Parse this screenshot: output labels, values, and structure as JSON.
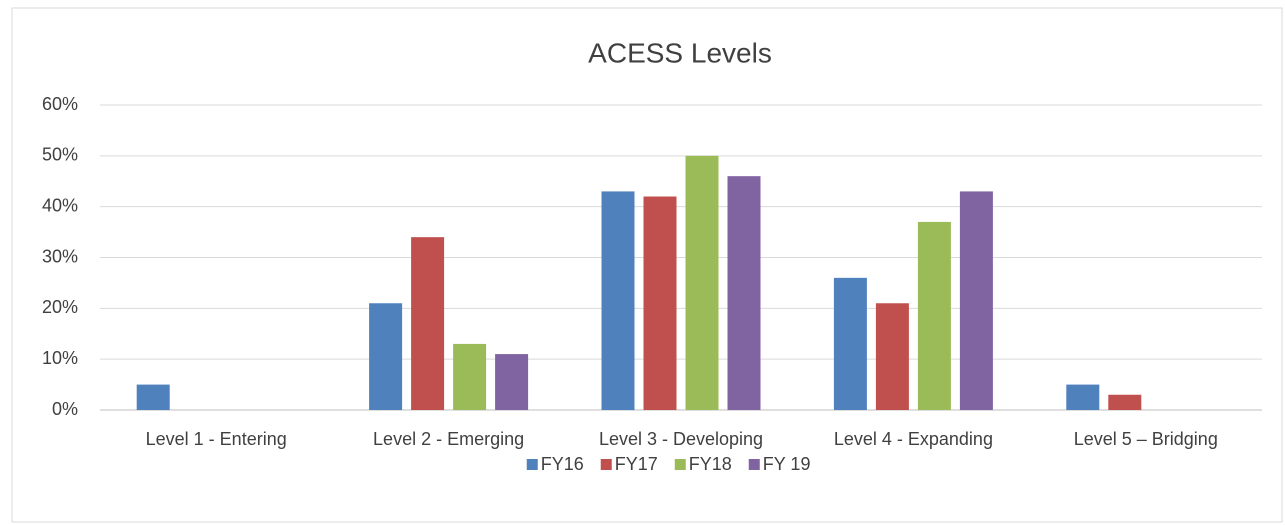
{
  "chart_data": {
    "type": "bar",
    "title": "ACESS Levels",
    "categories": [
      "Level 1 - Entering",
      "Level 2 - Emerging",
      "Level 3 - Developing",
      "Level 4 - Expanding",
      "Level 5 – Bridging"
    ],
    "series": [
      {
        "name": "FY16",
        "color": "#4f81bd",
        "values": [
          5,
          21,
          43,
          26,
          5
        ]
      },
      {
        "name": "FY17",
        "color": "#c0504d",
        "values": [
          0,
          34,
          42,
          21,
          3
        ]
      },
      {
        "name": "FY18",
        "color": "#9bbb59",
        "values": [
          0,
          13,
          50,
          37,
          0
        ]
      },
      {
        "name": "FY 19",
        "color": "#8064a2",
        "values": [
          0,
          11,
          46,
          43,
          0
        ]
      }
    ],
    "ylim": [
      0,
      60
    ],
    "yticks": [
      {
        "value": 0,
        "label": "0%"
      },
      {
        "value": 10,
        "label": "10%"
      },
      {
        "value": 20,
        "label": "20%"
      },
      {
        "value": 30,
        "label": "30%"
      },
      {
        "value": 40,
        "label": "40%"
      },
      {
        "value": 50,
        "label": "50%"
      },
      {
        "value": 60,
        "label": "60%"
      }
    ],
    "grid": true,
    "legend": "bottom"
  }
}
